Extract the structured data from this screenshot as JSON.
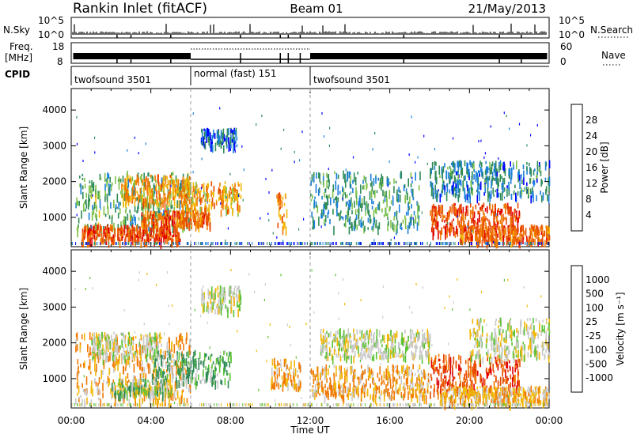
{
  "header": {
    "station": "Rankin Inlet (fitACF)",
    "beam": "Beam 01",
    "date": "21/May/2013"
  },
  "summary_panels": {
    "nsky": {
      "left_label": "N.Sky",
      "right_label": "N.Search",
      "ticks_left": [
        "10^5",
        "10^0"
      ],
      "ticks_right": [
        "10^5",
        "10^0"
      ]
    },
    "freq": {
      "left_label_1": "Freq.",
      "left_label_2": "[MHz]",
      "right_label": "Nave",
      "ticks_left": [
        "18",
        "8"
      ],
      "ticks_right": [
        "60",
        "0"
      ]
    },
    "cpid": {
      "label": "CPID",
      "segments": [
        {
          "name": "twofsound 3501",
          "start_hour": 0,
          "end_hour": 6
        },
        {
          "name": "normal (fast) 151",
          "start_hour": 6,
          "end_hour": 12
        },
        {
          "name": "twofsound 3501",
          "start_hour": 12,
          "end_hour": 24
        }
      ]
    }
  },
  "chart_data": [
    {
      "type": "heatmap",
      "title": "",
      "xlabel": "",
      "ylabel": "Slant Range [km]",
      "xlim": [
        0,
        24
      ],
      "ylim": [
        180,
        4600
      ],
      "yticks": [
        1000,
        2000,
        3000,
        4000
      ],
      "colorbar": {
        "label": "Power [dB]",
        "ticks": [
          4,
          8,
          12,
          16,
          20,
          24,
          28
        ],
        "colors": [
          "#0000ff",
          "#1a7fd9",
          "#2e8b57",
          "#7fc24a",
          "#f2b705",
          "#f07800",
          "#e84a00",
          "#e00000"
        ]
      },
      "echo_regions": [
        {
          "t": [
            0.2,
            6.0
          ],
          "r": [
            500,
            2200
          ],
          "level": 12
        },
        {
          "t": [
            0.5,
            5.5
          ],
          "r": [
            250,
            700
          ],
          "level": 26
        },
        {
          "t": [
            2.5,
            6.0
          ],
          "r": [
            1300,
            2100
          ],
          "level": 20
        },
        {
          "t": [
            5.5,
            8.5
          ],
          "r": [
            1100,
            1900
          ],
          "level": 20
        },
        {
          "t": [
            3.5,
            7.0
          ],
          "r": [
            700,
            1100
          ],
          "level": 24
        },
        {
          "t": [
            6.5,
            8.3
          ],
          "r": [
            2900,
            3400
          ],
          "level": 6
        },
        {
          "t": [
            10.3,
            10.8
          ],
          "r": [
            600,
            1600
          ],
          "level": 22
        },
        {
          "t": [
            12.0,
            17.5
          ],
          "r": [
            600,
            2200
          ],
          "level": 10
        },
        {
          "t": [
            18.0,
            22.5
          ],
          "r": [
            500,
            1300
          ],
          "level": 26
        },
        {
          "t": [
            19.5,
            24.0
          ],
          "r": [
            250,
            700
          ],
          "level": 24
        },
        {
          "t": [
            18.0,
            24.0
          ],
          "r": [
            1500,
            2500
          ],
          "level": 8
        }
      ]
    },
    {
      "type": "heatmap",
      "title": "",
      "xlabel": "Time UT",
      "ylabel": "Slant Range [km]",
      "xlim": [
        0,
        24
      ],
      "ylim": [
        180,
        4600
      ],
      "xticks": [
        "00:00",
        "04:00",
        "08:00",
        "12:00",
        "16:00",
        "20:00",
        "00:00"
      ],
      "yticks": [
        1000,
        2000,
        3000,
        4000
      ],
      "colorbar": {
        "label": "Velocity [m s⁻¹]",
        "ticks": [
          "1000",
          "500",
          "100",
          "25",
          "-25",
          "-100",
          "-500",
          "-1000"
        ],
        "colors": [
          "#2050b0",
          "#3a78c8",
          "#2e8b57",
          "#5cc234",
          "#c8c8c8",
          "#f2b705",
          "#f07800",
          "#e84a00",
          "#e00000"
        ]
      },
      "echo_regions": [
        {
          "t": [
            0.2,
            6.0
          ],
          "r": [
            300,
            2200
          ],
          "vclass": "orange"
        },
        {
          "t": [
            1.0,
            4.5
          ],
          "r": [
            1500,
            2200
          ],
          "vclass": "gray"
        },
        {
          "t": [
            4.0,
            8.0
          ],
          "r": [
            800,
            1700
          ],
          "vclass": "darkgreen"
        },
        {
          "t": [
            2.0,
            5.0
          ],
          "r": [
            500,
            900
          ],
          "vclass": "green"
        },
        {
          "t": [
            10.0,
            11.5
          ],
          "r": [
            700,
            1500
          ],
          "vclass": "orange"
        },
        {
          "t": [
            12.0,
            18.0
          ],
          "r": [
            400,
            1300
          ],
          "vclass": "orange"
        },
        {
          "t": [
            12.5,
            18.0
          ],
          "r": [
            1500,
            2300
          ],
          "vclass": "gray"
        },
        {
          "t": [
            6.5,
            8.5
          ],
          "r": [
            2800,
            3500
          ],
          "vclass": "gray"
        },
        {
          "t": [
            18.0,
            22.5
          ],
          "r": [
            500,
            1600
          ],
          "vclass": "red"
        },
        {
          "t": [
            18.5,
            24.0
          ],
          "r": [
            250,
            700
          ],
          "vclass": "lightorange"
        },
        {
          "t": [
            20.0,
            24.0
          ],
          "r": [
            1500,
            2600
          ],
          "vclass": "gray"
        }
      ]
    }
  ]
}
